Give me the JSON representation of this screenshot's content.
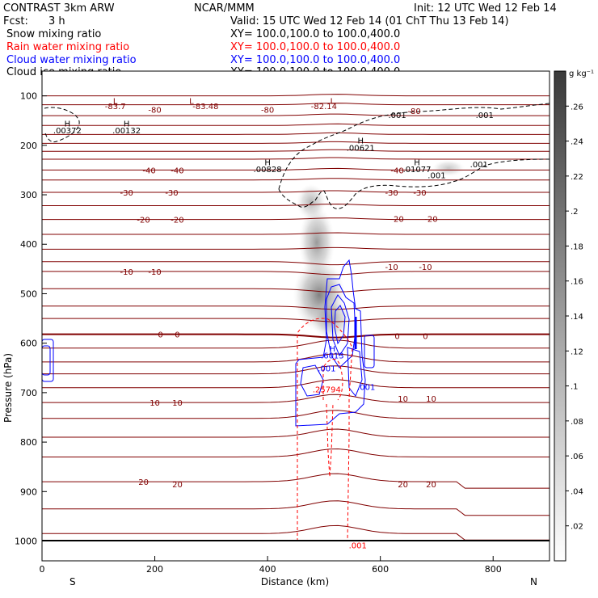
{
  "header": {
    "model": "CONTRAST  3km ARW",
    "org": "NCAR/MMM",
    "init": "Init: 12 UTC Wed 12 Feb 14",
    "fcst_label": "Fcst:",
    "fcst_value": "3 h",
    "valid": "Valid: 15 UTC Wed 12 Feb 14 (01 ChT Thu 13 Feb 14)",
    "fields": [
      {
        "name": "Snow mixing ratio",
        "xy": "XY=  100.0,100.0 to 100.0,400.0",
        "color": "#000000"
      },
      {
        "name": "Rain water mixing ratio",
        "xy": "XY=  100.0,100.0 to 100.0,400.0",
        "color": "#ff0000"
      },
      {
        "name": "Cloud water mixing ratio",
        "xy": "XY=  100.0,100.0 to 100.0,400.0",
        "color": "#0000ff"
      },
      {
        "name": "Cloud ice mixing ratio",
        "xy": "XY=  100.0,100.0 to 100.0,400.0",
        "color": "#000000"
      }
    ]
  },
  "chart_data": {
    "type": "contour",
    "xlabel": "Distance (km)",
    "ylabel": "Pressure (hPa)",
    "xlim": [
      0,
      900
    ],
    "ylim": [
      1040,
      50
    ],
    "x_ticks": [
      "0",
      "200",
      "400",
      "600",
      "800"
    ],
    "x_tick_values": [
      0,
      200,
      400,
      600,
      800
    ],
    "y_ticks": [
      "100",
      "200",
      "300",
      "400",
      "500",
      "600",
      "700",
      "800",
      "900",
      "1000"
    ],
    "y_tick_values": [
      100,
      200,
      300,
      400,
      500,
      600,
      700,
      800,
      900,
      1000
    ],
    "x_end_labels": {
      "left": "S",
      "right": "N"
    },
    "colorbar": {
      "unit": "g kg⁻¹",
      "labels": [
        ".26",
        ".24",
        ".22",
        ".2",
        ".18",
        ".16",
        ".14",
        ".12",
        ".1",
        ".08",
        ".06",
        ".04",
        ".02"
      ],
      "values": [
        0.26,
        0.24,
        0.22,
        0.2,
        0.18,
        0.16,
        0.14,
        0.12,
        0.1,
        0.08,
        0.06,
        0.04,
        0.02
      ]
    },
    "temperature_labels": [
      {
        "text": "-83.7",
        "x": 130,
        "p": 120
      },
      {
        "text": "-83.48",
        "x": 290,
        "p": 120
      },
      {
        "text": "-82.14",
        "x": 500,
        "p": 120
      },
      {
        "text": "-80",
        "x": 200,
        "p": 128
      },
      {
        "text": "-80",
        "x": 400,
        "p": 128
      },
      {
        "text": "-80",
        "x": 660,
        "p": 130
      },
      {
        "text": "-40",
        "x": 190,
        "p": 250
      },
      {
        "text": "-40",
        "x": 240,
        "p": 250
      },
      {
        "text": "-40",
        "x": 630,
        "p": 250
      },
      {
        "text": "-30",
        "x": 150,
        "p": 295
      },
      {
        "text": "-30",
        "x": 230,
        "p": 295
      },
      {
        "text": "-30",
        "x": 620,
        "p": 295
      },
      {
        "text": "-30",
        "x": 670,
        "p": 295
      },
      {
        "text": "-20",
        "x": 180,
        "p": 350
      },
      {
        "text": "-20",
        "x": 240,
        "p": 350
      },
      {
        "text": "-20",
        "x": 630,
        "p": 348
      },
      {
        "text": "-20",
        "x": 690,
        "p": 348
      },
      {
        "text": "-10",
        "x": 150,
        "p": 455
      },
      {
        "text": "-10",
        "x": 200,
        "p": 455
      },
      {
        "text": "-10",
        "x": 620,
        "p": 445
      },
      {
        "text": "-10",
        "x": 680,
        "p": 445
      },
      {
        "text": "0",
        "x": 210,
        "p": 582
      },
      {
        "text": "0",
        "x": 240,
        "p": 582
      },
      {
        "text": "0",
        "x": 630,
        "p": 585
      },
      {
        "text": "0",
        "x": 680,
        "p": 585
      },
      {
        "text": "10",
        "x": 200,
        "p": 720
      },
      {
        "text": "10",
        "x": 240,
        "p": 720
      },
      {
        "text": "10",
        "x": 640,
        "p": 712
      },
      {
        "text": "10",
        "x": 690,
        "p": 712
      },
      {
        "text": "20",
        "x": 180,
        "p": 880
      },
      {
        "text": "20",
        "x": 240,
        "p": 885
      },
      {
        "text": "20",
        "x": 640,
        "p": 885
      },
      {
        "text": "20",
        "x": 690,
        "p": 885
      }
    ],
    "temperature_isotherm_pressures": [
      100,
      118,
      140,
      160,
      178,
      196,
      212,
      228,
      250,
      270,
      295,
      322,
      350,
      380,
      410,
      435,
      455,
      490,
      525,
      550,
      582,
      610,
      638,
      662,
      690,
      720,
      752,
      790,
      830,
      880,
      935,
      985
    ],
    "extrema_labels": [
      {
        "mark": "L",
        "x": 130,
        "p": 110
      },
      {
        "mark": "L",
        "x": 265,
        "p": 110
      },
      {
        "mark": "L",
        "x": 515,
        "p": 110
      },
      {
        "mark": "H",
        "x": 45,
        "p": 155,
        "text": ".00372"
      },
      {
        "mark": "H",
        "x": 150,
        "p": 155,
        "text": ".00132"
      },
      {
        "mark": "H",
        "x": 565,
        "p": 190,
        "text": ".00621"
      },
      {
        "mark": "H",
        "x": 400,
        "p": 234,
        "text": ".00828"
      },
      {
        "mark": "H",
        "x": 665,
        "p": 234,
        "text": ".01077"
      },
      {
        "mark": "H",
        "x": 515,
        "p": 610,
        "text": ".6013"
      }
    ],
    "cloud_ice_labels": [
      {
        "text": ".001",
        "x": 630,
        "p": 138
      },
      {
        "text": ".001",
        "x": 785,
        "p": 138
      },
      {
        "text": ".001",
        "x": 700,
        "p": 260
      },
      {
        "text": ".001",
        "x": 775,
        "p": 238
      }
    ],
    "rain_labels": [
      {
        "text": ".25794",
        "x": 505,
        "p": 693
      },
      {
        "text": ".001",
        "x": 560,
        "p": 1008
      }
    ],
    "cloud_water_labels": [
      {
        "text": ".001",
        "x": 505,
        "p": 650
      },
      {
        "text": ".001",
        "x": 575,
        "p": 688
      }
    ]
  }
}
